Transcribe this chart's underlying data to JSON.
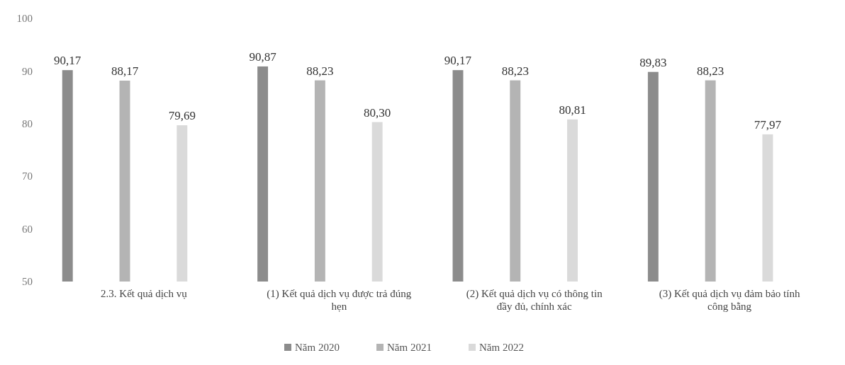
{
  "chart_data": {
    "type": "bar",
    "categories": [
      "2.3. Kết quả dịch vụ",
      "(1) Kết quả dịch vụ được trả đúng hẹn",
      "(2) Kết quả dịch vụ có thông tin đầy đủ, chính xác",
      "(3) Kết quả dịch vụ đảm bảo tính công bằng"
    ],
    "series": [
      {
        "name": "Năm 2020",
        "color": "#8c8c8c",
        "values": [
          90.17,
          90.87,
          90.17,
          89.83
        ],
        "value_labels": [
          "90,17",
          "90,87",
          "90,17",
          "89,83"
        ]
      },
      {
        "name": "Năm 2021",
        "color": "#b4b4b4",
        "values": [
          88.17,
          88.23,
          88.23,
          88.23
        ],
        "value_labels": [
          "88,17",
          "88,23",
          "88,23",
          "88,23"
        ]
      },
      {
        "name": "Năm 2022",
        "color": "#dadada",
        "values": [
          79.69,
          80.3,
          80.81,
          77.97
        ],
        "value_labels": [
          "79,69",
          "80,30",
          "80,81",
          "77,97"
        ]
      }
    ],
    "ylim": [
      50,
      100
    ],
    "yticks": [
      50,
      60,
      70,
      80,
      90,
      100
    ],
    "legend": "bottom"
  }
}
